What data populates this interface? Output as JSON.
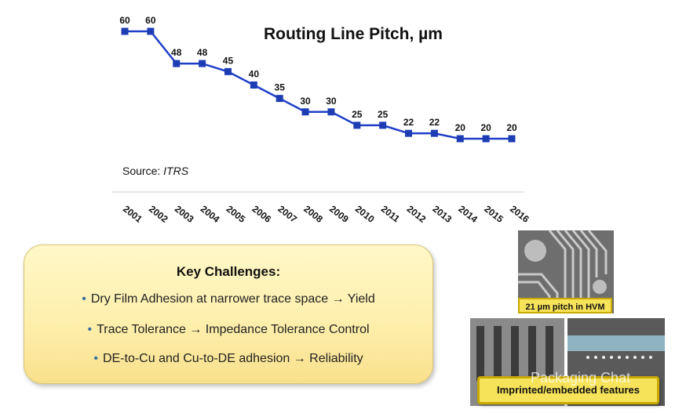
{
  "chart_data": {
    "type": "line",
    "title": "Routing Line Pitch, µm",
    "categories": [
      "2001",
      "2002",
      "2003",
      "2004",
      "2005",
      "2006",
      "2007",
      "2008",
      "2009",
      "2010",
      "2011",
      "2012",
      "2013",
      "2014",
      "2015",
      "2016"
    ],
    "values": [
      60,
      60,
      48,
      48,
      45,
      40,
      35,
      30,
      30,
      25,
      25,
      22,
      22,
      20,
      20,
      20
    ],
    "ylim": [
      15,
      65
    ],
    "xlabel": "",
    "ylabel": "",
    "series_color": "#1f3fc8",
    "marker_color": "#1e3db5"
  },
  "source": {
    "prefix": "Source: ",
    "name": "ITRS"
  },
  "challenges": {
    "title": "Key Challenges:",
    "bullet": "•",
    "items": [
      "Dry Film Adhesion at narrower trace space → Yield",
      "Trace Tolerance → Impedance Tolerance Control",
      "DE-to-Cu and Cu-to-DE adhesion  → Reliability"
    ]
  },
  "photos": {
    "label1": "21 µm pitch in HVM",
    "label2": "Imprinted/embedded features"
  },
  "watermark": "Packaging Chat"
}
